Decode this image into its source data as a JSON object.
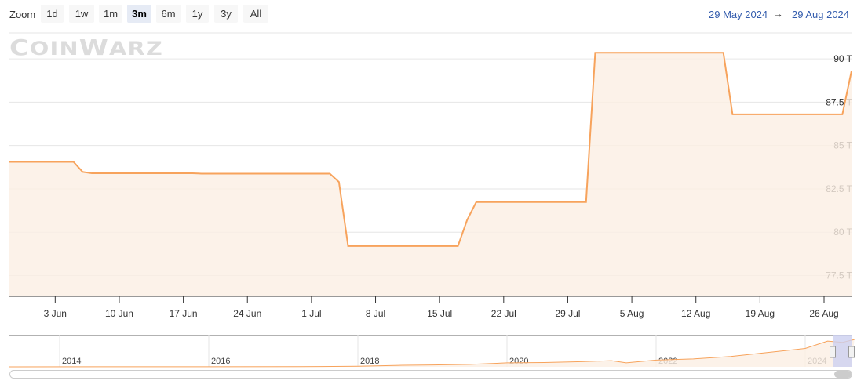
{
  "toolbar": {
    "zoom_label": "Zoom",
    "buttons": [
      "1d",
      "1w",
      "1m",
      "3m",
      "6m",
      "1y",
      "3y",
      "All"
    ],
    "selected": "3m"
  },
  "range": {
    "from": "29 May 2024",
    "arrow": "→",
    "to": "29 Aug 2024"
  },
  "logo": "COINWARZ",
  "colors": {
    "line": "#f7a35c",
    "fill": "#fbefe4",
    "selection": "#ccd0f0",
    "link": "#335cad"
  },
  "chart_data": {
    "type": "area",
    "yaxis": {
      "ticks": [
        "77.5 T",
        "80 T",
        "82.5 T",
        "85 T",
        "87.5 T",
        "90 T"
      ],
      "values": [
        77.5,
        80,
        82.5,
        85,
        87.5,
        90
      ],
      "range": [
        76.3,
        91.5
      ],
      "position": "right",
      "grid": true
    },
    "xaxis": {
      "ticks": [
        "3 Jun",
        "10 Jun",
        "17 Jun",
        "24 Jun",
        "1 Jul",
        "8 Jul",
        "15 Jul",
        "22 Jul",
        "29 Jul",
        "5 Aug",
        "12 Aug",
        "19 Aug",
        "26 Aug"
      ],
      "range": [
        "2024-05-29",
        "2024-08-29"
      ]
    },
    "series": [
      {
        "points": [
          [
            "2024-05-29",
            84.06
          ],
          [
            "2024-06-05",
            84.06
          ],
          [
            "2024-06-06",
            83.48
          ],
          [
            "2024-06-07",
            83.4
          ],
          [
            "2024-06-18",
            83.4
          ],
          [
            "2024-06-19",
            83.38
          ],
          [
            "2024-07-03",
            83.38
          ],
          [
            "2024-07-04",
            82.9
          ],
          [
            "2024-07-05",
            79.2
          ],
          [
            "2024-07-17",
            79.2
          ],
          [
            "2024-07-18",
            80.7
          ],
          [
            "2024-07-19",
            81.74
          ],
          [
            "2024-07-31",
            81.74
          ],
          [
            "2024-08-01",
            90.36
          ],
          [
            "2024-08-15",
            90.36
          ],
          [
            "2024-08-16",
            86.8
          ],
          [
            "2024-08-28",
            86.8
          ],
          [
            "2024-08-29",
            89.3
          ]
        ]
      }
    ],
    "navigator": {
      "ticks": [
        "2014",
        "2016",
        "2018",
        "2020",
        "2022",
        "2024"
      ],
      "points": [
        [
          2013.3,
          0.1
        ],
        [
          2016,
          0.3
        ],
        [
          2017.5,
          0.8
        ],
        [
          2018,
          2
        ],
        [
          2018.6,
          5
        ],
        [
          2019,
          6
        ],
        [
          2019.5,
          8
        ],
        [
          2020,
          13
        ],
        [
          2020.5,
          14
        ],
        [
          2021,
          17
        ],
        [
          2021.4,
          20
        ],
        [
          2021.6,
          13
        ],
        [
          2022,
          22
        ],
        [
          2022.5,
          26
        ],
        [
          2023,
          34
        ],
        [
          2023.5,
          47
        ],
        [
          2024,
          60
        ],
        [
          2024.3,
          84
        ],
        [
          2024.5,
          80
        ],
        [
          2024.66,
          89
        ]
      ]
    }
  }
}
